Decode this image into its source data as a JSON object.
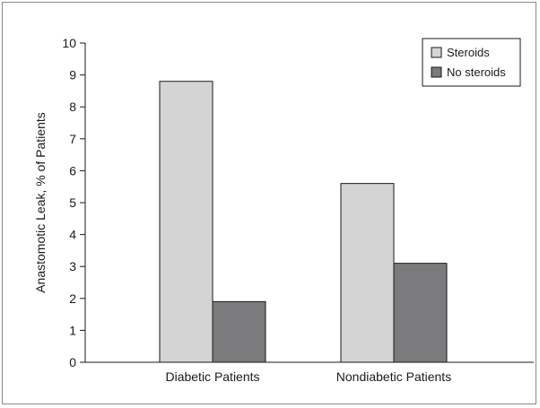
{
  "chart_data": {
    "type": "bar",
    "title": "",
    "xlabel": "",
    "ylabel": "Anastomotic Leak, % of Patients",
    "categories": [
      "Diabetic Patients",
      "Nondiabetic Patients"
    ],
    "series": [
      {
        "name": "Steroids",
        "values": [
          8.8,
          5.6
        ],
        "color": "#d4d4d4"
      },
      {
        "name": "No steroids",
        "values": [
          1.9,
          3.1
        ],
        "color": "#7b7b7e"
      }
    ],
    "ylim": [
      0,
      10
    ],
    "yticks": [
      0,
      1,
      2,
      3,
      4,
      5,
      6,
      7,
      8,
      9,
      10
    ],
    "grid": false,
    "legend": "top-right"
  }
}
